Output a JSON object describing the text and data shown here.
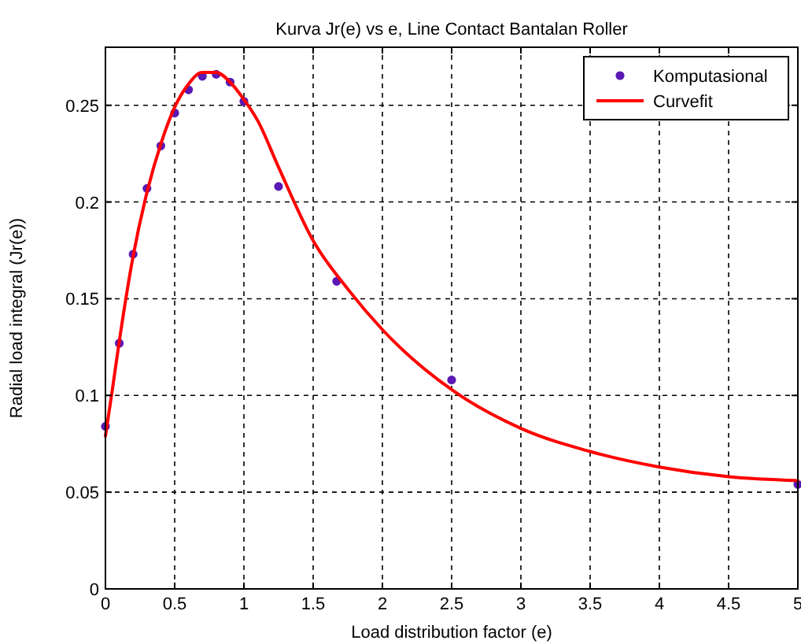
{
  "chart_data": {
    "type": "scatter",
    "title": "Kurva Jr(e) vs e, Line Contact Bantalan Roller",
    "xlabel": "Load distribution factor (e)",
    "ylabel": "Radial load integral (Jr(e))",
    "xlim": [
      0,
      5
    ],
    "ylim": [
      0,
      0.28
    ],
    "xticks": [
      0,
      0.5,
      1,
      1.5,
      2,
      2.5,
      3,
      3.5,
      4,
      4.5,
      5
    ],
    "yticks": [
      0,
      0.05,
      0.1,
      0.15,
      0.2,
      0.25
    ],
    "grid": true,
    "legend": "top right",
    "series": [
      {
        "name": "Komputasional",
        "marker": "circle",
        "color": "#5a18b4",
        "x": [
          0,
          0.1,
          0.2,
          0.3,
          0.4,
          0.5,
          0.6,
          0.7,
          0.8,
          0.9,
          1.0,
          1.25,
          1.67,
          2.5,
          5.0
        ],
        "values": [
          0.084,
          0.127,
          0.173,
          0.207,
          0.229,
          0.246,
          0.258,
          0.265,
          0.266,
          0.262,
          0.252,
          0.208,
          0.159,
          0.108,
          0.054
        ]
      },
      {
        "name": "Curvefit",
        "type": "line",
        "marker": "none",
        "line_style": "solid",
        "color": "#ff0000",
        "x": [
          0,
          0.05,
          0.1,
          0.2,
          0.3,
          0.4,
          0.5,
          0.6,
          0.7,
          0.8,
          0.9,
          1.0,
          1.1,
          1.25,
          1.5,
          1.75,
          2.0,
          2.5,
          3.0,
          3.5,
          4.0,
          4.5,
          5.0
        ],
        "values": [
          0.079,
          0.103,
          0.128,
          0.172,
          0.205,
          0.23,
          0.249,
          0.261,
          0.267,
          0.267,
          0.262,
          0.253,
          0.242,
          0.218,
          0.18,
          0.155,
          0.134,
          0.103,
          0.083,
          0.071,
          0.063,
          0.058,
          0.056
        ]
      }
    ]
  }
}
